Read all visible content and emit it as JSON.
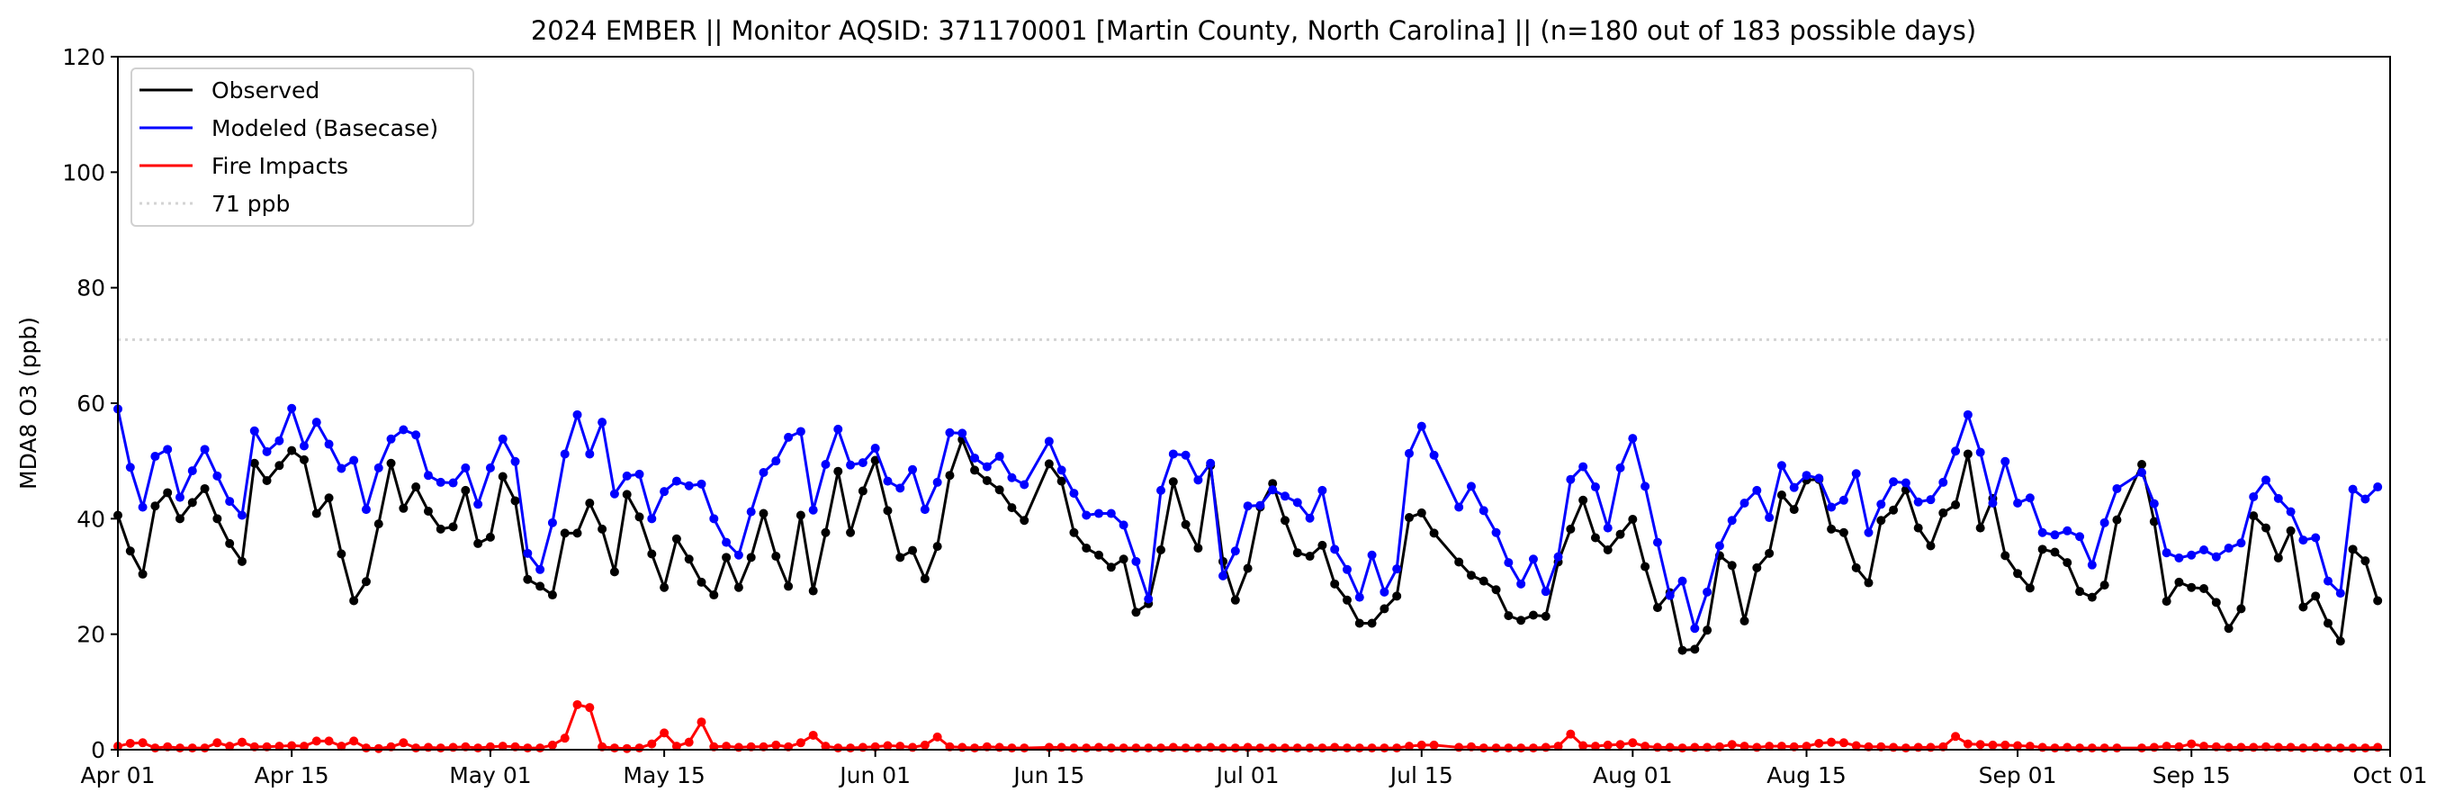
{
  "chart_data": {
    "type": "line",
    "title": "2024 EMBER || Monitor AQSID: 371170001 [Martin County, North Carolina] || (n=180 out of 183 possible days)",
    "xlabel": "",
    "ylabel": "MDA8 O3 (ppb)",
    "ylim": [
      0,
      120
    ],
    "yticks": [
      "0",
      "20",
      "40",
      "60",
      "80",
      "100",
      "120"
    ],
    "x_start": "2024-04-01",
    "xlim_days": [
      0,
      183
    ],
    "xticks": [
      {
        "label": "Apr 01",
        "day": 0
      },
      {
        "label": "Apr 15",
        "day": 14
      },
      {
        "label": "May 01",
        "day": 30
      },
      {
        "label": "May 15",
        "day": 44
      },
      {
        "label": "Jun 01",
        "day": 61
      },
      {
        "label": "Jun 15",
        "day": 75
      },
      {
        "label": "Jul 01",
        "day": 91
      },
      {
        "label": "Jul 15",
        "day": 105
      },
      {
        "label": "Aug 01",
        "day": 122
      },
      {
        "label": "Aug 15",
        "day": 136
      },
      {
        "label": "Sep 01",
        "day": 153
      },
      {
        "label": "Sep 15",
        "day": 167
      },
      {
        "label": "Oct 01",
        "day": 183
      }
    ],
    "legend_position": "top-left",
    "reference_line": {
      "label": "71 ppb",
      "value": 71,
      "color": "#d3d3d3"
    },
    "series": [
      {
        "name": "Observed",
        "color": "#000000",
        "values": [
          40.6,
          34.4,
          30.4,
          42.2,
          44.5,
          40,
          42.8,
          45.2,
          40,
          35.7,
          32.6,
          49.6,
          46.6,
          49.2,
          51.8,
          50.2,
          40.9,
          43.6,
          33.9,
          25.8,
          29.1,
          39.1,
          49.6,
          41.8,
          45.5,
          41.3,
          38.2,
          38.6,
          44.9,
          35.7,
          36.8,
          47.3,
          43.1,
          29.5,
          28.3,
          26.8,
          37.5,
          37.5,
          42.7,
          38.2,
          30.8,
          44.2,
          40.3,
          33.9,
          28.1,
          36.5,
          33,
          29,
          26.8,
          33.3,
          28.1,
          33.3,
          40.9,
          33.5,
          28.3,
          40.6,
          27.5,
          37.6,
          48.2,
          37.6,
          44.8,
          50.1,
          41.4,
          33.3,
          34.5,
          29.6,
          35.2,
          47.5,
          53.7,
          48.4,
          46.6,
          45,
          41.9,
          39.7,
          null,
          49.5,
          46.5,
          37.6,
          34.9,
          33.7,
          31.6,
          33,
          23.8,
          25.3,
          34.6,
          46.4,
          39,
          34.9,
          49.2,
          32.6,
          25.9,
          31.4,
          42,
          46.1,
          39.7,
          34.1,
          33.5,
          35.4,
          28.7,
          25.9,
          21.9,
          21.9,
          24.4,
          26.6,
          40.2,
          41,
          37.5,
          null,
          32.5,
          30.2,
          29.2,
          27.7,
          23.2,
          22.4,
          23.3,
          23.1,
          32.5,
          38.2,
          43.2,
          36.7,
          34.6,
          37.3,
          39.9,
          31.7,
          24.6,
          27.2,
          17.2,
          17.4,
          20.7,
          33.6,
          31.9,
          22.3,
          31.5,
          34,
          44.1,
          41.6,
          46.7,
          46.8,
          38.2,
          37.6,
          31.5,
          28.9,
          39.7,
          41.5,
          45,
          38.4,
          35.3,
          41,
          42.4,
          51.2,
          38.4,
          43.5,
          33.6,
          30.5,
          28,
          34.7,
          34.2,
          32.4,
          27.4,
          26.4,
          28.5,
          39.8,
          null,
          49.4,
          39.5,
          25.7,
          29,
          28.1,
          27.9,
          25.5,
          21,
          24.4,
          40.5,
          38.4,
          33.2,
          37.9,
          24.7,
          26.6,
          21.9,
          18.8,
          34.7,
          32.7,
          25.8
        ]
      },
      {
        "name": "Modeled (Basecase)",
        "color": "#0000ff",
        "values": [
          59,
          48.9,
          42,
          50.8,
          52,
          43.7,
          48.3,
          52,
          47.4,
          43,
          40.6,
          55.2,
          51.6,
          53.5,
          59.1,
          52.6,
          56.7,
          52.9,
          48.7,
          50.1,
          41.6,
          48.8,
          53.8,
          55.4,
          54.5,
          47.5,
          46.3,
          46.2,
          48.8,
          42.5,
          48.8,
          53.8,
          49.9,
          34,
          31.2,
          39.3,
          51.2,
          58,
          51.2,
          56.7,
          44.3,
          47.4,
          47.7,
          40,
          44.7,
          46.5,
          45.7,
          46,
          40,
          35.9,
          33.7,
          41.2,
          48,
          50,
          54.1,
          55.1,
          41.5,
          49.4,
          55.5,
          49.3,
          49.7,
          52.2,
          46.5,
          45.3,
          48.5,
          41.6,
          46.3,
          54.9,
          54.8,
          50.5,
          49,
          50.8,
          47.1,
          45.9,
          null,
          53.4,
          48.4,
          44.4,
          40.6,
          40.9,
          40.9,
          38.9,
          32.6,
          26.1,
          44.9,
          51.2,
          51,
          46.7,
          49.6,
          30.1,
          34.4,
          42.2,
          42.3,
          45,
          43.9,
          42.8,
          40.1,
          44.9,
          34.7,
          31.2,
          26.4,
          33.7,
          27.3,
          31.3,
          51.3,
          56,
          51,
          null,
          42,
          45.6,
          41.4,
          37.6,
          32.4,
          28.7,
          33,
          27.4,
          33.4,
          46.8,
          49,
          45.5,
          38.4,
          48.8,
          53.9,
          45.6,
          35.9,
          26.7,
          29.2,
          21,
          27.3,
          35.3,
          39.7,
          42.7,
          44.9,
          40.2,
          49.2,
          45.4,
          47.5,
          47,
          42,
          43.2,
          47.8,
          37.6,
          42.5,
          46.4,
          46.2,
          42.9,
          43.3,
          46.3,
          51.7,
          58,
          51.5,
          42.7,
          49.9,
          42.7,
          43.6,
          37.6,
          37.2,
          37.9,
          36.9,
          32,
          39.3,
          45.2,
          null,
          48,
          42.6,
          34.1,
          33.2,
          33.7,
          34.6,
          33.4,
          34.9,
          35.8,
          43.8,
          46.7,
          43.5,
          41.2,
          36.3,
          36.7,
          29.2,
          27.1,
          45.1,
          43.4,
          45.5
        ]
      },
      {
        "name": "Fire Impacts",
        "color": "#ff0000",
        "values": [
          0.6,
          1.1,
          1.2,
          0.3,
          0.5,
          0.3,
          0.3,
          0.3,
          1.2,
          0.6,
          1.3,
          0.5,
          0.5,
          0.6,
          0.7,
          0.6,
          1.5,
          1.5,
          0.6,
          1.5,
          0.3,
          0.2,
          0.5,
          1.2,
          0.3,
          0.4,
          0.3,
          0.4,
          0.5,
          0.3,
          0.5,
          0.6,
          0.5,
          0.3,
          0.3,
          0.8,
          2,
          7.8,
          7.3,
          0.5,
          0.3,
          0.2,
          0.3,
          1,
          2.9,
          0.6,
          1.3,
          4.8,
          0.5,
          0.6,
          0.4,
          0.5,
          0.5,
          0.8,
          0.5,
          1.2,
          2.5,
          0.6,
          0.3,
          0.3,
          0.4,
          0.5,
          0.7,
          0.6,
          0.4,
          0.8,
          2.2,
          0.5,
          0.4,
          0.3,
          0.5,
          0.4,
          0.3,
          0.3,
          null,
          0.4,
          0.4,
          0.3,
          0.3,
          0.4,
          0.3,
          0.3,
          0.3,
          0.3,
          0.3,
          0.4,
          0.3,
          0.3,
          0.4,
          0.3,
          0.3,
          0.4,
          0.3,
          0.3,
          0.3,
          0.3,
          0.3,
          0.3,
          0.4,
          0.3,
          0.3,
          0.3,
          0.3,
          0.3,
          0.6,
          0.8,
          0.8,
          null,
          0.4,
          0.5,
          0.3,
          0.3,
          0.3,
          0.3,
          0.3,
          0.4,
          0.6,
          2.7,
          0.7,
          0.6,
          0.8,
          0.9,
          1.2,
          0.6,
          0.4,
          0.4,
          0.3,
          0.4,
          0.4,
          0.5,
          0.9,
          0.6,
          0.4,
          0.6,
          0.6,
          0.5,
          0.6,
          1.1,
          1.3,
          1.2,
          0.7,
          0.5,
          0.5,
          0.4,
          0.3,
          0.4,
          0.4,
          0.5,
          2.3,
          1,
          0.9,
          0.8,
          0.8,
          0.7,
          0.6,
          0.4,
          0.3,
          0.4,
          0.3,
          0.3,
          0.3,
          0.3,
          null,
          0.3,
          0.4,
          0.6,
          0.5,
          1,
          0.6,
          0.5,
          0.4,
          0.4,
          0.4,
          0.5,
          0.4,
          0.4,
          0.3,
          0.4,
          0.3,
          0.3,
          0.3,
          0.3,
          0.4
        ]
      }
    ]
  }
}
